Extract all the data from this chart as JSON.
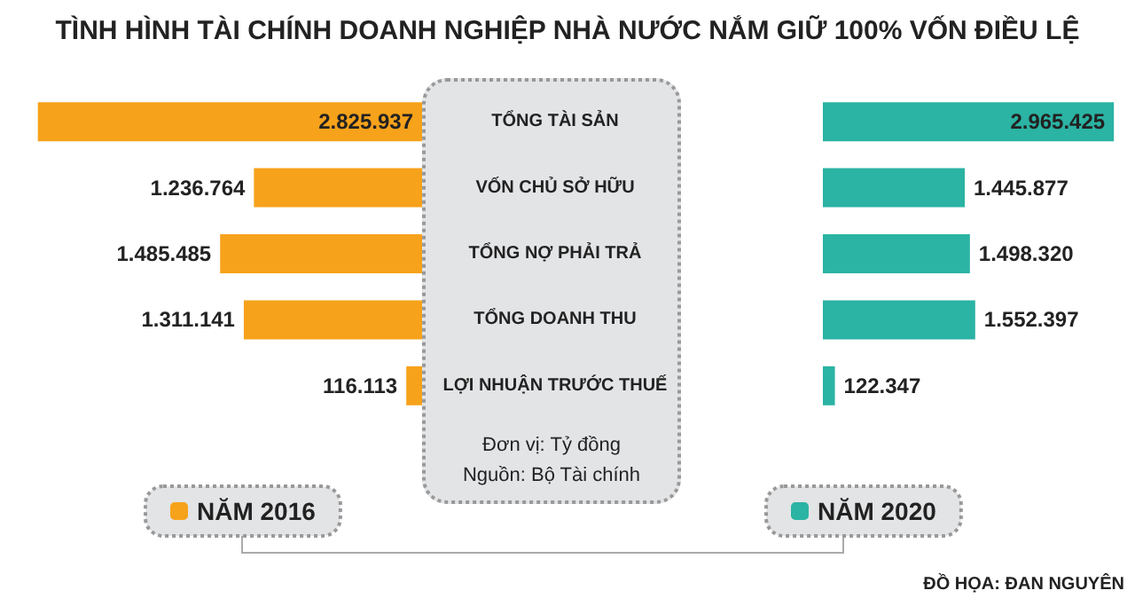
{
  "chart_data": [
    {
      "type": "bar",
      "orientation": "horizontal",
      "title": "TÌNH HÌNH TÀI CHÍNH DOANH NGHIỆP NHÀ NƯỚC NẮM GIỮ 100% VỐN ĐIỀU LỆ",
      "categories": [
        "TỔNG TÀI SẢN",
        "VỐN CHỦ SỞ HỮU",
        "TỔNG NỢ PHẢI TRẢ",
        "TỔNG DOANH THU",
        "LỢI NHUẬN TRƯỚC THUẾ"
      ],
      "series": [
        {
          "name": "NĂM 2016",
          "color": "#f7a21b",
          "values": [
            2825937,
            1236764,
            1485485,
            1311141,
            116113
          ],
          "value_labels": [
            "2.825.937",
            "1.236.764",
            "1.485.485",
            "1.311.141",
            "116.113"
          ]
        }
      ],
      "legend": "bottom",
      "annotations": [
        "Đơn vị: Tỷ đồng",
        "Nguồn: Bộ Tài chính",
        "ĐỒ HỌA: ĐAN NGUYÊN"
      ]
    },
    {
      "type": "bar",
      "orientation": "horizontal",
      "categories": [
        null,
        null,
        null,
        null,
        null
      ],
      "series": [
        {
          "name": "NĂM 2020",
          "color": "#2bb3a3",
          "values": [
            2965425,
            1445877,
            1498320,
            1552397,
            122347
          ],
          "value_labels": [
            "2.965.425",
            "1.445.877",
            "1.498.320",
            "1.552.397",
            "122.347"
          ]
        }
      ],
      "legend": "bottom"
    }
  ]
}
